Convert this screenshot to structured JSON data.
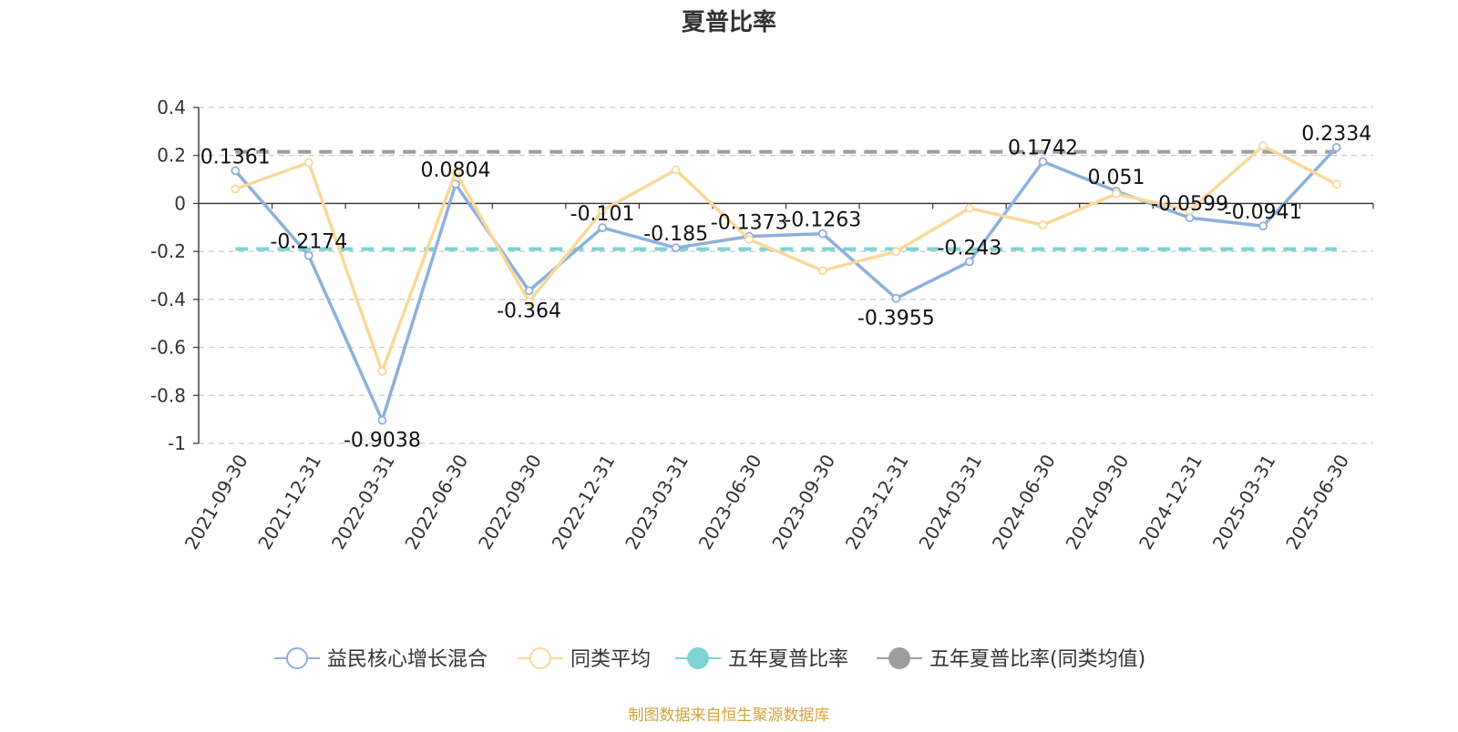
{
  "chart_data": {
    "type": "line",
    "title": "夏普比率",
    "x": [
      "2021-09-30",
      "2021-12-31",
      "2022-03-31",
      "2022-06-30",
      "2022-09-30",
      "2022-12-31",
      "2023-03-31",
      "2023-06-30",
      "2023-09-30",
      "2023-12-31",
      "2024-03-31",
      "2024-06-30",
      "2024-09-30",
      "2024-12-31",
      "2025-03-31",
      "2025-06-30"
    ],
    "ylim": [
      -1,
      0.4
    ],
    "yticks": [
      0.4,
      0.2,
      0,
      -0.2,
      -0.4,
      -0.6,
      -0.8,
      -1
    ],
    "ytick_labels": [
      "0.4",
      "0.2",
      "0",
      "-0.2",
      "-0.4",
      "-0.6",
      "-0.8",
      "-1"
    ],
    "grid": true,
    "legend_position": "bottom",
    "series": [
      {
        "name": "益民核心增长混合",
        "color": "#8eb0dc",
        "values": [
          0.1361,
          -0.2174,
          -0.9038,
          0.0804,
          -0.364,
          -0.101,
          -0.185,
          -0.1373,
          -0.1263,
          -0.3955,
          -0.243,
          0.1742,
          0.051,
          -0.0599,
          -0.0941,
          0.2334
        ],
        "labels": [
          "0.1361",
          "-0.2174",
          "-0.9038",
          "0.0804",
          "-0.364",
          "-0.101",
          "-0.185",
          "-0.1373",
          "-0.1263",
          "-0.3955",
          "-0.243",
          "0.1742",
          "0.051",
          "-0.0599",
          "-0.0941",
          "0.2334"
        ]
      },
      {
        "name": "同类平均",
        "color": "#f9d99a",
        "values": [
          0.06,
          0.17,
          -0.7,
          0.13,
          -0.41,
          -0.03,
          0.14,
          -0.15,
          -0.28,
          -0.2,
          -0.02,
          -0.09,
          0.04,
          -0.03,
          0.24,
          0.08
        ]
      }
    ],
    "reference_lines": [
      {
        "name": "五年夏普比率",
        "color": "#7fd3d3",
        "value": -0.19
      },
      {
        "name": "五年夏普比率(同类均值)",
        "color": "#9e9e9e",
        "value": 0.215
      }
    ],
    "footer": "制图数据来自恒生聚源数据库",
    "footer_color": "#d4a53c"
  }
}
